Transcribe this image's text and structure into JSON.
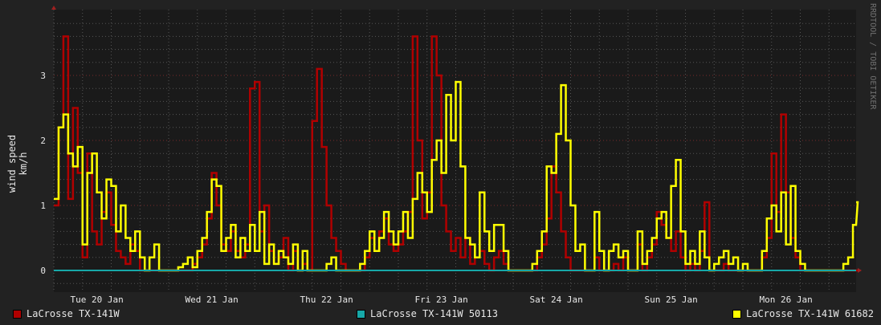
{
  "chart_data": {
    "type": "line",
    "ylabel": "wind speed km/h",
    "watermark": "RRDTOOL / TOBI OETIKER",
    "ylim": [
      -0.33,
      4.0
    ],
    "yticks": [
      "0",
      "1",
      "2",
      "3"
    ],
    "xticks": [
      "Tue 20 Jan",
      "Wed 21 Jan",
      "Thu 22 Jan",
      "Fri 23 Jan",
      "Sat 24 Jan",
      "Sun 25 Jan",
      "Mon 26 Jan"
    ],
    "x_start": "Tue 20 Jan 03:00",
    "x_step_hours": 1,
    "grid": true,
    "legend_position": "bottom",
    "series": [
      {
        "name": "LaCrosse TX-141W",
        "color": "#b00000",
        "values": [
          1.0,
          2.2,
          3.6,
          1.1,
          2.5,
          1.5,
          0.2,
          1.8,
          0.6,
          0.4,
          0.9,
          1.2,
          0.7,
          0.3,
          0.2,
          0.1,
          0.4,
          0.3,
          0,
          0,
          0,
          0,
          0,
          0,
          0,
          0,
          0,
          0,
          0,
          0.1,
          0.2,
          0.4,
          0.8,
          1.5,
          1.0,
          0.4,
          0.3,
          0.6,
          0.3,
          0.2,
          0.4,
          2.8,
          2.9,
          0.6,
          1.0,
          0.3,
          0.1,
          0.2,
          0.5,
          0,
          0.3,
          0,
          0.1,
          0,
          2.3,
          3.1,
          1.9,
          1.0,
          0.5,
          0.3,
          0.1,
          0,
          0,
          0,
          0,
          0.2,
          0.5,
          0.3,
          0.6,
          0.8,
          0.4,
          0.3,
          0.4,
          0.6,
          0.9,
          3.6,
          2.0,
          0.8,
          1.2,
          3.6,
          3.0,
          1.0,
          0.6,
          0.3,
          0.5,
          0.2,
          0.5,
          0.1,
          0.2,
          0.3,
          0.1,
          0,
          0.2,
          0.3,
          0.1,
          0,
          0,
          0,
          0,
          0,
          0,
          0.2,
          0.4,
          0.8,
          1.6,
          1.2,
          0.6,
          0.2,
          0,
          0,
          0,
          0,
          0,
          0.2,
          0,
          0,
          0,
          0.1,
          0,
          0.2,
          0,
          0,
          0.4,
          0,
          0.2,
          0.4,
          0.9,
          0.7,
          0.5,
          0.3,
          0.6,
          0.2,
          0,
          0.1,
          0,
          0.3,
          1.05,
          0,
          0,
          0,
          0.1,
          0,
          0,
          0,
          0,
          0,
          0,
          0,
          0.2,
          0.5,
          1.8,
          0.9,
          2.4,
          1.2,
          0.5,
          0.2,
          0,
          0,
          0,
          0,
          0,
          0,
          0,
          0,
          0,
          0,
          0,
          0,
          0
        ]
      },
      {
        "name": "LaCrosse TX-141W 50113",
        "color": "#17a8a8",
        "values": [
          0,
          0
        ]
      },
      {
        "name": "LaCrosse TX-141W 61682",
        "color": "#ffff00",
        "values": [
          1.1,
          2.2,
          2.4,
          1.8,
          1.6,
          1.9,
          0.4,
          1.5,
          1.8,
          1.2,
          0.8,
          1.4,
          1.3,
          0.6,
          1.0,
          0.5,
          0.3,
          0.6,
          0.2,
          0.0,
          0.2,
          0.4,
          0,
          0,
          0,
          0,
          0.05,
          0.1,
          0.2,
          0.05,
          0.3,
          0.5,
          0.9,
          1.4,
          1.3,
          0.3,
          0.5,
          0.7,
          0.2,
          0.5,
          0.3,
          0.7,
          0.3,
          0.9,
          0.1,
          0.4,
          0.1,
          0.3,
          0.2,
          0.1,
          0.4,
          0,
          0.3,
          0,
          0,
          0,
          0,
          0.1,
          0.2,
          0,
          0,
          0,
          0,
          0,
          0.1,
          0.3,
          0.6,
          0.3,
          0.5,
          0.9,
          0.6,
          0.4,
          0.6,
          0.9,
          0.5,
          1.1,
          1.5,
          1.2,
          0.9,
          1.7,
          2.0,
          1.5,
          2.7,
          2.0,
          2.9,
          1.6,
          0.5,
          0.4,
          0.2,
          1.2,
          0.6,
          0.3,
          0.7,
          0.7,
          0.3,
          0,
          0,
          0,
          0,
          0,
          0.1,
          0.3,
          0.6,
          1.6,
          1.5,
          2.1,
          2.85,
          2.0,
          1.0,
          0.3,
          0.4,
          0,
          0,
          0.9,
          0.3,
          0,
          0.3,
          0.4,
          0.2,
          0.3,
          0,
          0,
          0.6,
          0.1,
          0.3,
          0.5,
          0.8,
          0.9,
          0.5,
          1.3,
          1.7,
          0.6,
          0.1,
          0.3,
          0.1,
          0.6,
          0.2,
          0,
          0.1,
          0.2,
          0.3,
          0.1,
          0.2,
          0,
          0.1,
          0,
          0,
          0,
          0.3,
          0.8,
          1.0,
          0.6,
          1.2,
          0.4,
          1.3,
          0.3,
          0.1,
          0,
          0,
          0,
          0,
          0,
          0,
          0,
          0,
          0.1,
          0.2,
          0.7,
          1.05
        ]
      }
    ]
  }
}
